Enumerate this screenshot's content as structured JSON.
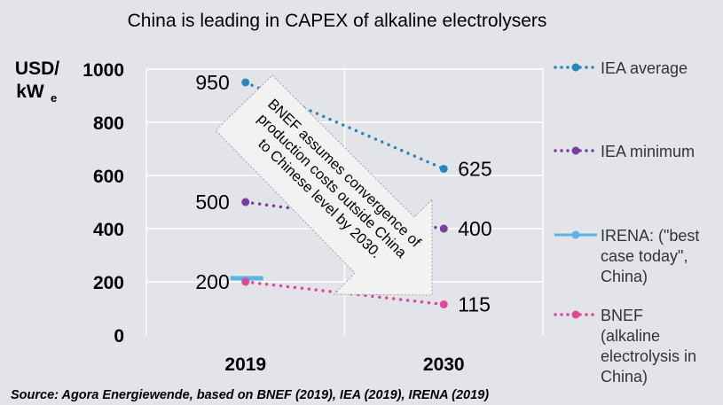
{
  "chart_data": {
    "type": "line",
    "title": "China is leading in CAPEX of alkaline electrolysers",
    "ylabel_line1": "USD/",
    "ylabel_line2": "kW",
    "ylabel_sub": "e",
    "xlabel": "",
    "categories": [
      "2019",
      "2030"
    ],
    "ylim": [
      0,
      1000
    ],
    "yticks": [
      0,
      200,
      400,
      600,
      800,
      1000
    ],
    "grid": true,
    "legend_position": "right",
    "series": [
      {
        "name": "IEA average",
        "values": [
          950,
          625
        ],
        "color": "#2a86b8",
        "style": "dotted",
        "labels": [
          "950",
          "625"
        ],
        "legend_lines": [
          "IEA average"
        ]
      },
      {
        "name": "IEA minimum",
        "values": [
          500,
          400
        ],
        "color": "#7a3d9a",
        "style": "dotted",
        "labels": [
          "500",
          "400"
        ],
        "legend_lines": [
          "IEA minimum"
        ]
      },
      {
        "name": "IRENA: (\"best case today\", China)",
        "values": [
          200,
          null
        ],
        "color": "#5ab4e0",
        "style": "solid",
        "labels": [
          "200",
          ""
        ],
        "legend_lines": [
          "IRENA: (\"best",
          "case today\",",
          "China)"
        ]
      },
      {
        "name": "BNEF (alkaline electrolysis in China)",
        "values": [
          200,
          115
        ],
        "color": "#d94a9a",
        "style": "dotted",
        "labels": [
          "",
          "115"
        ],
        "legend_lines": [
          "BNEF",
          "(alkaline",
          "electrolysis in",
          "China)"
        ]
      }
    ],
    "annotation": {
      "lines": [
        "BNEF assumes convergence of",
        "production costs outside China",
        "to Chinese level by 2030."
      ]
    },
    "source": "Source: Agora Energiewende, based on BNEF (2019), IEA (2019), IRENA (2019)"
  }
}
